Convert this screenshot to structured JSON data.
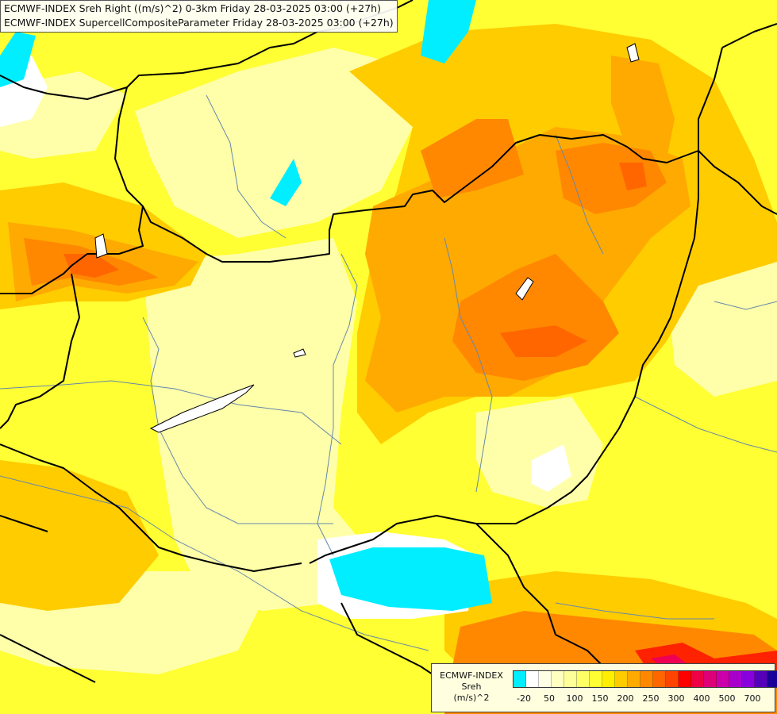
{
  "title": {
    "line1": "ECMWF-INDEX Sreh Right ((m/s)^2) 0-3km Friday 28-03-2025 03:00 (+27h)",
    "line2": "ECMWF-INDEX SupercellCompositeParameter Friday 28-03-2025 03:00 (+27h)"
  },
  "legend": {
    "line1": "ECMWF-INDEX",
    "line2": "Sreh",
    "line3": "(m/s)^2",
    "colors": [
      "#00eeff",
      "#ffffff",
      "#ffffe6",
      "#ffffc0",
      "#ffff99",
      "#ffff66",
      "#ffff33",
      "#ffee00",
      "#ffcc00",
      "#ffaa00",
      "#ff8800",
      "#ff6600",
      "#ff4400",
      "#ff0000",
      "#ee0044",
      "#dd0077",
      "#cc00aa",
      "#aa00cc",
      "#8800dd",
      "#5500bb",
      "#1a0099",
      "#000077"
    ],
    "tick_labels": [
      "-20",
      "50",
      "100",
      "150",
      "200",
      "250",
      "300",
      "400",
      "500",
      "700"
    ]
  },
  "palette": {
    "base": "#ffff33",
    "pale": "#ffffaa",
    "cream": "#ffffcc",
    "amber": "#ffcc00",
    "orange1": "#ffaa00",
    "orange2": "#ff8800",
    "orange3": "#ff6600",
    "red": "#ff2200",
    "magenta": "#ee0055",
    "cyan": "#00eeff",
    "white": "#ffffff",
    "border": "#000000",
    "river": "#6688aa"
  }
}
